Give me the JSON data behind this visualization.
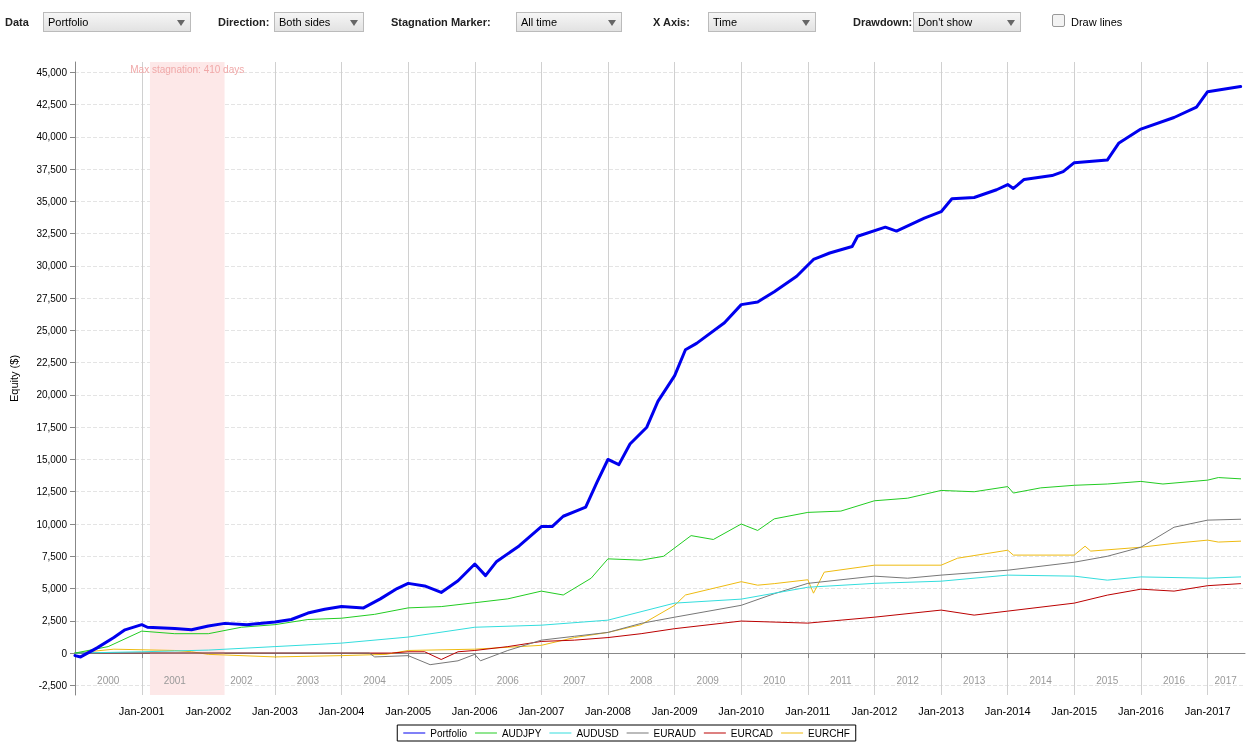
{
  "chart_data": [
    {
      "type": "other",
      "annotations": [
        "Data",
        "Portfolio",
        "Direction:",
        "Both sides",
        "Stagnation Marker:",
        "All time",
        "X Axis:",
        "Time",
        "Drawdown:",
        "Don't show",
        "Draw lines"
      ]
    },
    {
      "type": "line",
      "ylabel": "Equity ($)",
      "xlim": [
        "2000-01-01",
        "2017-07-25"
      ],
      "ylim": [
        -3250,
        45800
      ],
      "xticks": [
        {
          "value": "2001-01-01",
          "label": "Jan-2001"
        },
        {
          "value": "2002-01-01",
          "label": "Jan-2002"
        },
        {
          "value": "2003-01-01",
          "label": "Jan-2003"
        },
        {
          "value": "2004-01-01",
          "label": "Jan-2004"
        },
        {
          "value": "2005-01-01",
          "label": "Jan-2005"
        },
        {
          "value": "2006-01-01",
          "label": "Jan-2006"
        },
        {
          "value": "2007-01-01",
          "label": "Jan-2007"
        },
        {
          "value": "2008-01-01",
          "label": "Jan-2008"
        },
        {
          "value": "2009-01-01",
          "label": "Jan-2009"
        },
        {
          "value": "2010-01-01",
          "label": "Jan-2010"
        },
        {
          "value": "2011-01-01",
          "label": "Jan-2011"
        },
        {
          "value": "2012-01-01",
          "label": "Jan-2012"
        },
        {
          "value": "2013-01-01",
          "label": "Jan-2013"
        },
        {
          "value": "2014-01-01",
          "label": "Jan-2014"
        },
        {
          "value": "2015-01-01",
          "label": "Jan-2015"
        },
        {
          "value": "2016-01-01",
          "label": "Jan-2016"
        },
        {
          "value": "2017-01-01",
          "label": "Jan-2017"
        }
      ],
      "x2lim": [
        "2000-01-01",
        "2017-07-25"
      ],
      "x2ticks": [
        {
          "value": "2000-07-01",
          "label": "2000"
        },
        {
          "value": "2001-07-01",
          "label": "2001"
        },
        {
          "value": "2002-07-01",
          "label": "2002"
        },
        {
          "value": "2003-07-01",
          "label": "2003"
        },
        {
          "value": "2004-07-01",
          "label": "2004"
        },
        {
          "value": "2005-07-01",
          "label": "2005"
        },
        {
          "value": "2006-07-01",
          "label": "2006"
        },
        {
          "value": "2007-07-01",
          "label": "2007"
        },
        {
          "value": "2008-07-01",
          "label": "2008"
        },
        {
          "value": "2009-07-01",
          "label": "2009"
        },
        {
          "value": "2010-07-01",
          "label": "2010"
        },
        {
          "value": "2011-07-01",
          "label": "2011"
        },
        {
          "value": "2012-07-01",
          "label": "2012"
        },
        {
          "value": "2013-07-01",
          "label": "2013"
        },
        {
          "value": "2014-07-01",
          "label": "2014"
        },
        {
          "value": "2015-07-01",
          "label": "2015"
        },
        {
          "value": "2016-07-01",
          "label": "2016"
        },
        {
          "value": "2017-04-10",
          "label": "2017"
        }
      ],
      "yticks": [
        {
          "value": -2500,
          "label": "-2,500"
        },
        {
          "value": 0,
          "label": "0"
        },
        {
          "value": 2500,
          "label": "2,500"
        },
        {
          "value": 5000,
          "label": "5,000"
        },
        {
          "value": 7500,
          "label": "7,500"
        },
        {
          "value": 10000,
          "label": "10,000"
        },
        {
          "value": 12500,
          "label": "12,500"
        },
        {
          "value": 15000,
          "label": "15,000"
        },
        {
          "value": 17500,
          "label": "17,500"
        },
        {
          "value": 20000,
          "label": "20,000"
        },
        {
          "value": 22500,
          "label": "22,500"
        },
        {
          "value": 25000,
          "label": "25,000"
        },
        {
          "value": 27500,
          "label": "27,500"
        },
        {
          "value": 30000,
          "label": "30,000"
        },
        {
          "value": 32500,
          "label": "32,500"
        },
        {
          "value": 35000,
          "label": "35,000"
        },
        {
          "value": 37500,
          "label": "37,500"
        },
        {
          "value": 40000,
          "label": "40,000"
        },
        {
          "value": 42500,
          "label": "42,500"
        },
        {
          "value": 45000,
          "label": "45,000"
        }
      ],
      "bands": [
        {
          "axis": "x",
          "from": "2001-02-15",
          "to": "2002-03-31",
          "label": "Max stagnation: 410 days",
          "color": "#fde8e8"
        }
      ],
      "grid": true,
      "legend": "bottom",
      "marker": "none",
      "series": [
        {
          "name": "Portfolio",
          "color": "#0000ee",
          "x": [
            "2000-01",
            "2000-02",
            "2000-05",
            "2000-08",
            "2000-10",
            "2001-01",
            "2001-02",
            "2001-07",
            "2001-10",
            "2002-01",
            "2002-04",
            "2002-08",
            "2003-01",
            "2003-04",
            "2003-07",
            "2003-10",
            "2004-01",
            "2004-05",
            "2004-08",
            "2004-11",
            "2005-01",
            "2005-04",
            "2005-07",
            "2005-10",
            "2006-01",
            "2006-03",
            "2006-05",
            "2006-09",
            "2007-01",
            "2007-03",
            "2007-05",
            "2007-09",
            "2007-11",
            "2008-01",
            "2008-03",
            "2008-05",
            "2008-08",
            "2008-10",
            "2009-01",
            "2009-03",
            "2009-05",
            "2009-10",
            "2010-01",
            "2010-04",
            "2010-07",
            "2010-11",
            "2011-02",
            "2011-05",
            "2011-09",
            "2011-10",
            "2012-03",
            "2012-05",
            "2012-10",
            "2013-01",
            "2013-03",
            "2013-07",
            "2013-11",
            "2014-01",
            "2014-02",
            "2014-04",
            "2014-09",
            "2014-11",
            "2015-01",
            "2015-07",
            "2015-09",
            "2016-01",
            "2016-07",
            "2016-11",
            "2017-01",
            "2017-07"
          ],
          "values": [
            -200,
            -300,
            400,
            1200,
            1800,
            2200,
            2000,
            1900,
            1800,
            2100,
            2300,
            2200,
            2400,
            2600,
            3100,
            3400,
            3600,
            3500,
            4200,
            5000,
            5400,
            5200,
            4700,
            5600,
            6900,
            6000,
            7100,
            8300,
            9800,
            9800,
            10600,
            11300,
            13200,
            15000,
            14600,
            16200,
            17500,
            19500,
            21500,
            23500,
            24000,
            25600,
            27000,
            27200,
            28000,
            29200,
            30500,
            31000,
            31500,
            32300,
            33000,
            32700,
            33700,
            34200,
            35200,
            35300,
            35900,
            36300,
            36000,
            36700,
            37000,
            37300,
            38000,
            38200,
            39500,
            40600,
            41500,
            42300,
            43500,
            43900
          ]
        },
        {
          "name": "AUDJPY",
          "color": "#22cc22",
          "x": [
            "2000-01",
            "2000-07",
            "2001-01",
            "2001-07",
            "2002-01",
            "2002-07",
            "2003-01",
            "2003-07",
            "2004-01",
            "2004-07",
            "2005-01",
            "2005-07",
            "2006-01",
            "2006-07",
            "2007-01",
            "2007-05",
            "2007-10",
            "2008-01",
            "2008-07",
            "2008-11",
            "2009-04",
            "2009-08",
            "2010-01",
            "2010-04",
            "2010-07",
            "2011-01",
            "2011-07",
            "2012-01",
            "2012-07",
            "2013-01",
            "2013-07",
            "2014-01",
            "2014-02",
            "2014-07",
            "2015-01",
            "2015-07",
            "2016-01",
            "2016-05",
            "2017-01",
            "2017-03",
            "2017-07"
          ],
          "values": [
            0,
            500,
            1700,
            1500,
            1500,
            2000,
            2200,
            2600,
            2700,
            3000,
            3500,
            3600,
            3900,
            4200,
            4800,
            4500,
            5800,
            7300,
            7200,
            7500,
            9100,
            8800,
            10000,
            9500,
            10400,
            10900,
            11000,
            11800,
            12000,
            12600,
            12500,
            12900,
            12400,
            12800,
            13000,
            13100,
            13300,
            13100,
            13400,
            13600,
            13500
          ]
        },
        {
          "name": "AUDUSD",
          "color": "#33dddd",
          "x": [
            "2000-01",
            "2001-01",
            "2002-01",
            "2003-01",
            "2004-01",
            "2005-01",
            "2006-01",
            "2007-01",
            "2008-01",
            "2009-01",
            "2010-01",
            "2011-01",
            "2012-01",
            "2013-01",
            "2014-01",
            "2015-01",
            "2015-07",
            "2016-01",
            "2017-01",
            "2017-07"
          ],
          "values": [
            0,
            100,
            230,
            500,
            770,
            1240,
            2000,
            2160,
            2550,
            3870,
            4180,
            5100,
            5400,
            5570,
            6040,
            5960,
            5650,
            5900,
            5800,
            5900
          ]
        },
        {
          "name": "EURAUD",
          "color": "#777777",
          "x": [
            "2000-01",
            "2004-06",
            "2004-07",
            "2005-01",
            "2005-05",
            "2005-10",
            "2006-01",
            "2006-02",
            "2006-07",
            "2007-01",
            "2007-07",
            "2008-01",
            "2008-07",
            "2009-01",
            "2010-01",
            "2010-07",
            "2011-01",
            "2012-01",
            "2012-07",
            "2013-01",
            "2014-01",
            "2015-01",
            "2015-07",
            "2016-01",
            "2016-07",
            "2017-01",
            "2017-07"
          ],
          "values": [
            0,
            0,
            -300,
            -200,
            -900,
            -600,
            -100,
            -600,
            200,
            1000,
            1300,
            1600,
            2300,
            2780,
            3700,
            4600,
            5400,
            5960,
            5800,
            6040,
            6420,
            7040,
            7500,
            8200,
            9750,
            10300,
            10370
          ]
        },
        {
          "name": "EURCAD",
          "color": "#bb0000",
          "x": [
            "2000-01",
            "2004-10",
            "2005-01",
            "2005-04",
            "2005-07",
            "2005-10",
            "2006-01",
            "2006-07",
            "2007-01",
            "2007-07",
            "2008-01",
            "2008-07",
            "2009-01",
            "2010-01",
            "2011-01",
            "2012-01",
            "2013-01",
            "2013-07",
            "2014-01",
            "2015-01",
            "2015-07",
            "2016-01",
            "2016-07",
            "2017-01",
            "2017-07"
          ],
          "values": [
            0,
            0,
            100,
            100,
            -500,
            100,
            200,
            500,
            900,
            1000,
            1200,
            1500,
            1890,
            2480,
            2320,
            2780,
            3330,
            2940,
            3250,
            3870,
            4490,
            4950,
            4800,
            5220,
            5380
          ]
        },
        {
          "name": "EURCHF",
          "color": "#eebb11",
          "x": [
            "2000-01",
            "2000-08",
            "2001-07",
            "2001-10",
            "2002-01",
            "2003-01",
            "2004-01",
            "2004-09",
            "2005-01",
            "2006-01",
            "2007-01",
            "2007-07",
            "2008-01",
            "2008-07",
            "2009-01",
            "2009-03",
            "2010-01",
            "2010-04",
            "2010-07",
            "2011-01",
            "2011-02",
            "2011-04",
            "2012-01",
            "2013-01",
            "2013-04",
            "2014-01",
            "2014-02",
            "2015-01",
            "2015-03",
            "2015-04",
            "2016-01",
            "2016-07",
            "2017-01",
            "2017-03",
            "2017-07"
          ],
          "values": [
            0,
            300,
            200,
            100,
            -100,
            -300,
            -200,
            -100,
            200,
            300,
            600,
            1200,
            1600,
            2200,
            3700,
            4500,
            5530,
            5260,
            5380,
            5680,
            4640,
            6270,
            6810,
            6810,
            7350,
            7970,
            7590,
            7590,
            8280,
            7900,
            8200,
            8500,
            8750,
            8600,
            8670
          ]
        }
      ]
    }
  ]
}
